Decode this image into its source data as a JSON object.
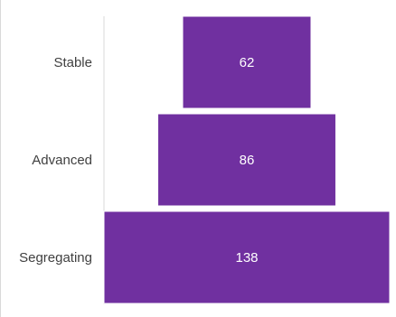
{
  "chart_data": {
    "type": "bar",
    "orientation": "horizontal-centered-funnel",
    "categories": [
      "Stable",
      "Advanced",
      "Segregating"
    ],
    "values": [
      62,
      86,
      138
    ],
    "data_labels": [
      "62",
      "86",
      "138"
    ],
    "xlim": [
      0,
      138
    ],
    "grid": false,
    "legend": "none",
    "colors": {
      "bar": "#7030A0",
      "bar_stroke": "#ffffff",
      "label_text": "#ffffff",
      "category_text": "#404040",
      "axis_line": "#d9d9d9"
    }
  }
}
